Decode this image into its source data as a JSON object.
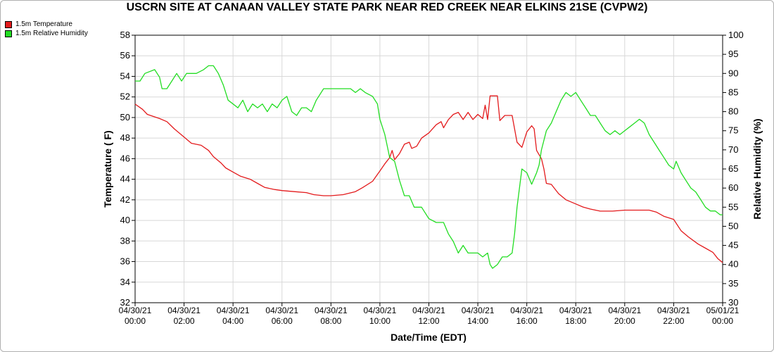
{
  "chart_data": {
    "type": "line",
    "title": "USCRN SITE AT CANAAN VALLEY STATE PARK NEAR RED CREEK NEAR ELKINS 21SE (CVPW2)",
    "xlabel": "Date/Time (EDT)",
    "ylabel": "Temperature ( F)",
    "y2label": "Relative Humidity (%)",
    "ylim": [
      32,
      58
    ],
    "y2lim": [
      30,
      100
    ],
    "yticks": [
      32,
      34,
      36,
      38,
      40,
      42,
      44,
      46,
      48,
      50,
      52,
      54,
      56,
      58
    ],
    "y2ticks": [
      30,
      35,
      40,
      45,
      50,
      55,
      60,
      65,
      70,
      75,
      80,
      85,
      90,
      95,
      100
    ],
    "xlim": [
      0,
      24
    ],
    "xticks": [
      {
        "x": 0,
        "date": "04/30/21",
        "time": "00:00"
      },
      {
        "x": 2,
        "date": "04/30/21",
        "time": "02:00"
      },
      {
        "x": 4,
        "date": "04/30/21",
        "time": "04:00"
      },
      {
        "x": 6,
        "date": "04/30/21",
        "time": "06:00"
      },
      {
        "x": 8,
        "date": "04/30/21",
        "time": "08:00"
      },
      {
        "x": 10,
        "date": "04/30/21",
        "time": "10:00"
      },
      {
        "x": 12,
        "date": "04/30/21",
        "time": "12:00"
      },
      {
        "x": 14,
        "date": "04/30/21",
        "time": "14:00"
      },
      {
        "x": 16,
        "date": "04/30/21",
        "time": "16:00"
      },
      {
        "x": 18,
        "date": "04/30/21",
        "time": "18:00"
      },
      {
        "x": 20,
        "date": "04/30/21",
        "time": "20:00"
      },
      {
        "x": 22,
        "date": "04/30/21",
        "time": "22:00"
      },
      {
        "x": 24,
        "date": "05/01/21",
        "time": "00:00"
      }
    ],
    "grid": true,
    "legend_position": "top-left",
    "series": [
      {
        "name": "1.5m Temperature",
        "axis": "left",
        "color": "#e31a1c",
        "points": [
          [
            0,
            51.3
          ],
          [
            0.3,
            50.8
          ],
          [
            0.5,
            50.3
          ],
          [
            1,
            49.9
          ],
          [
            1.3,
            49.6
          ],
          [
            1.6,
            48.9
          ],
          [
            1.9,
            48.3
          ],
          [
            2.3,
            47.5
          ],
          [
            2.7,
            47.3
          ],
          [
            3,
            46.8
          ],
          [
            3.2,
            46.2
          ],
          [
            3.5,
            45.6
          ],
          [
            3.7,
            45.1
          ],
          [
            4,
            44.7
          ],
          [
            4.3,
            44.3
          ],
          [
            4.7,
            44.0
          ],
          [
            5,
            43.6
          ],
          [
            5.3,
            43.2
          ],
          [
            5.7,
            43.0
          ],
          [
            6,
            42.9
          ],
          [
            6.5,
            42.8
          ],
          [
            7,
            42.7
          ],
          [
            7.3,
            42.5
          ],
          [
            7.7,
            42.4
          ],
          [
            8,
            42.4
          ],
          [
            8.5,
            42.5
          ],
          [
            9,
            42.8
          ],
          [
            9.3,
            43.2
          ],
          [
            9.7,
            43.8
          ],
          [
            10,
            44.8
          ],
          [
            10.2,
            45.5
          ],
          [
            10.4,
            46.1
          ],
          [
            10.5,
            46.8
          ],
          [
            10.6,
            45.9
          ],
          [
            10.8,
            46.5
          ],
          [
            11,
            47.4
          ],
          [
            11.2,
            47.6
          ],
          [
            11.3,
            47.0
          ],
          [
            11.5,
            47.2
          ],
          [
            11.7,
            48.0
          ],
          [
            12,
            48.5
          ],
          [
            12.3,
            49.3
          ],
          [
            12.5,
            49.6
          ],
          [
            12.6,
            49.0
          ],
          [
            12.8,
            49.8
          ],
          [
            13,
            50.3
          ],
          [
            13.2,
            50.5
          ],
          [
            13.4,
            49.8
          ],
          [
            13.6,
            50.5
          ],
          [
            13.8,
            49.8
          ],
          [
            14,
            50.3
          ],
          [
            14.2,
            49.9
          ],
          [
            14.3,
            51.2
          ],
          [
            14.4,
            49.8
          ],
          [
            14.5,
            52.1
          ],
          [
            14.8,
            52.1
          ],
          [
            14.9,
            49.7
          ],
          [
            15.1,
            50.2
          ],
          [
            15.4,
            50.2
          ],
          [
            15.6,
            47.6
          ],
          [
            15.8,
            47.1
          ],
          [
            16,
            48.6
          ],
          [
            16.2,
            49.2
          ],
          [
            16.3,
            48.9
          ],
          [
            16.4,
            46.8
          ],
          [
            16.6,
            46.0
          ],
          [
            16.7,
            45.0
          ],
          [
            16.8,
            43.6
          ],
          [
            17,
            43.5
          ],
          [
            17.3,
            42.6
          ],
          [
            17.6,
            42.0
          ],
          [
            18,
            41.6
          ],
          [
            18.3,
            41.3
          ],
          [
            18.6,
            41.1
          ],
          [
            19,
            40.9
          ],
          [
            19.5,
            40.9
          ],
          [
            20,
            41.0
          ],
          [
            20.5,
            41.0
          ],
          [
            21,
            41.0
          ],
          [
            21.3,
            40.8
          ],
          [
            21.6,
            40.4
          ],
          [
            22,
            40.1
          ],
          [
            22.3,
            39.0
          ],
          [
            22.6,
            38.4
          ],
          [
            23,
            37.7
          ],
          [
            23.3,
            37.3
          ],
          [
            23.6,
            36.9
          ],
          [
            23.8,
            36.3
          ],
          [
            24,
            35.9
          ]
        ]
      },
      {
        "name": "1.5m Relative Humidity",
        "axis": "right",
        "color": "#22dd22",
        "points": [
          [
            0,
            88
          ],
          [
            0.2,
            88
          ],
          [
            0.4,
            90
          ],
          [
            0.8,
            91
          ],
          [
            1,
            89
          ],
          [
            1.1,
            86
          ],
          [
            1.3,
            86
          ],
          [
            1.5,
            88
          ],
          [
            1.7,
            90
          ],
          [
            1.9,
            88
          ],
          [
            2.1,
            90
          ],
          [
            2.5,
            90
          ],
          [
            2.8,
            91
          ],
          [
            3,
            92
          ],
          [
            3.2,
            92
          ],
          [
            3.4,
            90
          ],
          [
            3.6,
            87
          ],
          [
            3.8,
            83
          ],
          [
            4,
            82
          ],
          [
            4.2,
            81
          ],
          [
            4.4,
            83
          ],
          [
            4.6,
            80
          ],
          [
            4.8,
            82
          ],
          [
            5,
            81
          ],
          [
            5.2,
            82
          ],
          [
            5.4,
            80
          ],
          [
            5.6,
            82
          ],
          [
            5.8,
            81
          ],
          [
            6,
            83
          ],
          [
            6.2,
            84
          ],
          [
            6.4,
            80
          ],
          [
            6.6,
            79
          ],
          [
            6.8,
            81
          ],
          [
            7,
            81
          ],
          [
            7.2,
            80
          ],
          [
            7.4,
            83
          ],
          [
            7.7,
            86
          ],
          [
            8,
            86
          ],
          [
            8.2,
            86
          ],
          [
            8.5,
            86
          ],
          [
            8.8,
            86
          ],
          [
            9,
            85
          ],
          [
            9.2,
            86
          ],
          [
            9.4,
            85
          ],
          [
            9.7,
            84
          ],
          [
            9.9,
            82
          ],
          [
            10,
            78
          ],
          [
            10.2,
            74
          ],
          [
            10.4,
            68
          ],
          [
            10.6,
            67
          ],
          [
            10.8,
            62
          ],
          [
            11,
            58
          ],
          [
            11.2,
            58
          ],
          [
            11.4,
            55
          ],
          [
            11.7,
            55
          ],
          [
            12,
            52
          ],
          [
            12.3,
            51
          ],
          [
            12.6,
            51
          ],
          [
            12.8,
            48
          ],
          [
            13,
            46
          ],
          [
            13.2,
            43
          ],
          [
            13.4,
            45
          ],
          [
            13.6,
            43
          ],
          [
            14,
            43
          ],
          [
            14.2,
            42
          ],
          [
            14.4,
            43
          ],
          [
            14.5,
            40
          ],
          [
            14.6,
            39
          ],
          [
            14.8,
            40
          ],
          [
            15,
            42
          ],
          [
            15.2,
            42
          ],
          [
            15.4,
            43
          ],
          [
            15.5,
            48
          ],
          [
            15.6,
            55
          ],
          [
            15.8,
            65
          ],
          [
            16,
            64
          ],
          [
            16.2,
            61
          ],
          [
            16.4,
            64
          ],
          [
            16.5,
            66
          ],
          [
            16.6,
            70
          ],
          [
            16.8,
            75
          ],
          [
            17,
            77
          ],
          [
            17.2,
            80
          ],
          [
            17.4,
            83
          ],
          [
            17.6,
            85
          ],
          [
            17.8,
            84
          ],
          [
            18,
            85
          ],
          [
            18.2,
            83
          ],
          [
            18.4,
            81
          ],
          [
            18.6,
            79
          ],
          [
            18.8,
            79
          ],
          [
            19,
            77
          ],
          [
            19.2,
            75
          ],
          [
            19.4,
            74
          ],
          [
            19.6,
            75
          ],
          [
            19.8,
            74
          ],
          [
            20,
            75
          ],
          [
            20.2,
            76
          ],
          [
            20.4,
            77
          ],
          [
            20.6,
            78
          ],
          [
            20.8,
            77
          ],
          [
            21,
            74
          ],
          [
            21.2,
            72
          ],
          [
            21.4,
            70
          ],
          [
            21.6,
            68
          ],
          [
            21.8,
            66
          ],
          [
            22,
            65
          ],
          [
            22.1,
            67
          ],
          [
            22.3,
            64
          ],
          [
            22.5,
            62
          ],
          [
            22.7,
            60
          ],
          [
            22.9,
            59
          ],
          [
            23.1,
            57
          ],
          [
            23.3,
            55
          ],
          [
            23.5,
            54
          ],
          [
            23.7,
            54
          ],
          [
            23.9,
            53
          ],
          [
            24,
            53
          ]
        ]
      }
    ]
  }
}
